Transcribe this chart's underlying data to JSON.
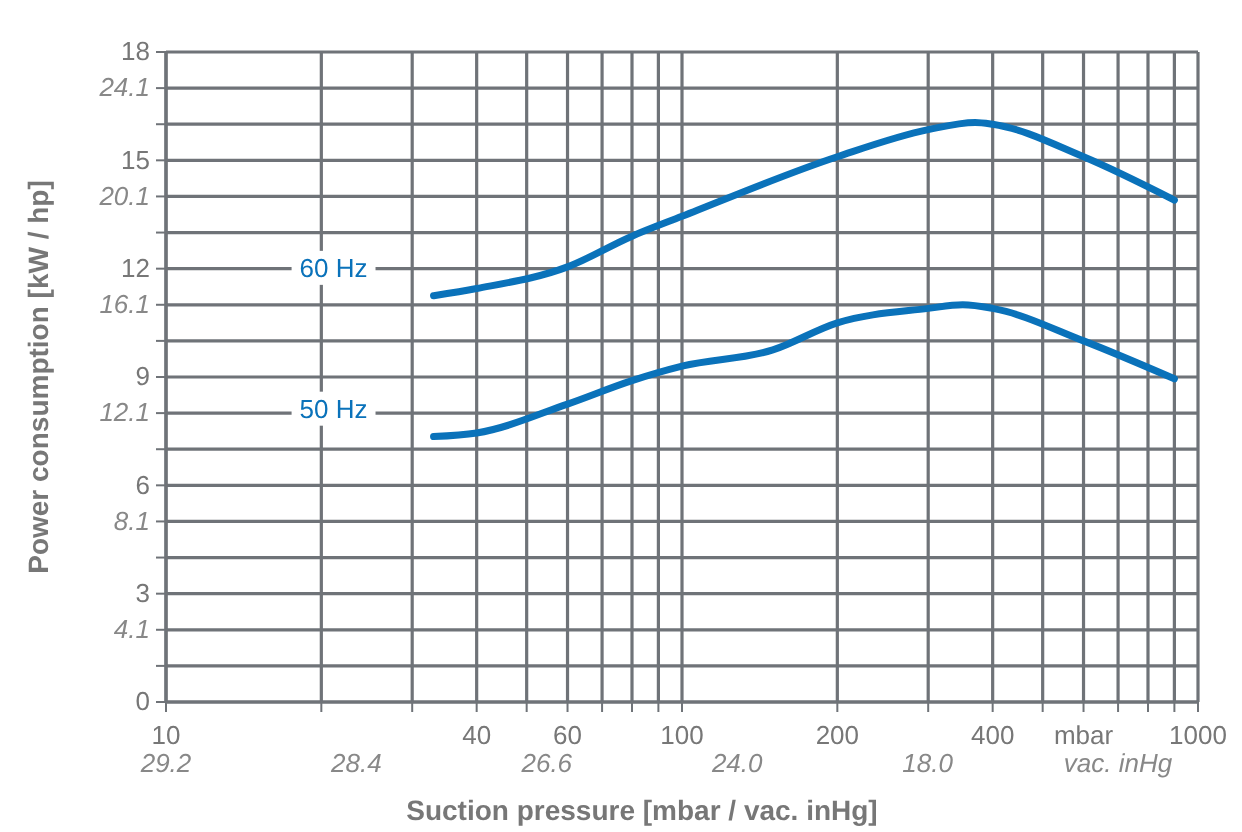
{
  "chart_data": {
    "type": "line",
    "xlabel": "Suction pressure [mbar / vac. inHg]",
    "y2label": "Power consumption [kW / hp]",
    "log": "x",
    "grid": true,
    "xlim": [
      10,
      1000
    ],
    "xticks": [
      10,
      {
        "value": 20,
        "label": null
      },
      {
        "value": 30,
        "label": null
      },
      40,
      {
        "value": 50,
        "label": null
      },
      60,
      {
        "value": 70,
        "label": null
      },
      {
        "value": 80,
        "label": null
      },
      {
        "value": 90,
        "label": null
      },
      100,
      200,
      {
        "value": 300,
        "label": null
      },
      400,
      {
        "value": 500,
        "label": null
      },
      {
        "value": 600,
        "label": "mbar"
      },
      {
        "value": 700,
        "label": null
      },
      {
        "value": 800,
        "label": null
      },
      {
        "value": 900,
        "label": null
      },
      1000
    ],
    "annotations": [
      "29.2",
      "28.4",
      "26.6",
      "24.0",
      "18.0",
      "vac. inHg"
    ],
    "ylim": [
      0,
      18
    ],
    "yticks": [
      0,
      {
        "value": 1,
        "label": null
      },
      {
        "value": 2,
        "label": null
      },
      3,
      {
        "value": 4,
        "label": null
      },
      {
        "value": 5,
        "label": null
      },
      6,
      {
        "value": 7,
        "label": null
      },
      {
        "value": 8,
        "label": null
      },
      9,
      {
        "value": 10,
        "label": null
      },
      {
        "value": 11,
        "label": null
      },
      12,
      {
        "value": 13,
        "label": null
      },
      {
        "value": 14,
        "label": null
      },
      15,
      {
        "value": 16,
        "label": null
      },
      {
        "value": 17,
        "label": null
      },
      18
    ],
    "y2lim": [
      1.43,
      25.43
    ],
    "y2ticks": [
      4.1,
      8.1,
      12.1,
      16.1,
      20.1,
      24.1
    ],
    "series": [
      {
        "name": "60 Hz",
        "color": "#0a72ba",
        "x": [
          33,
          40,
          60,
          80,
          100,
          200,
          300,
          370,
          400,
          600,
          900
        ],
        "values": [
          11.25,
          11.45,
          12.05,
          12.9,
          13.45,
          15.1,
          15.85,
          16.05,
          16.0,
          15.1,
          13.9
        ]
      },
      {
        "name": "50 Hz",
        "color": "#0a72ba",
        "x": [
          33,
          40,
          60,
          80,
          100,
          150,
          200,
          300,
          350,
          400,
          600,
          900
        ],
        "values": [
          7.35,
          7.45,
          8.25,
          8.9,
          9.3,
          9.75,
          10.5,
          10.9,
          11.0,
          10.9,
          10.0,
          8.95
        ]
      }
    ]
  }
}
